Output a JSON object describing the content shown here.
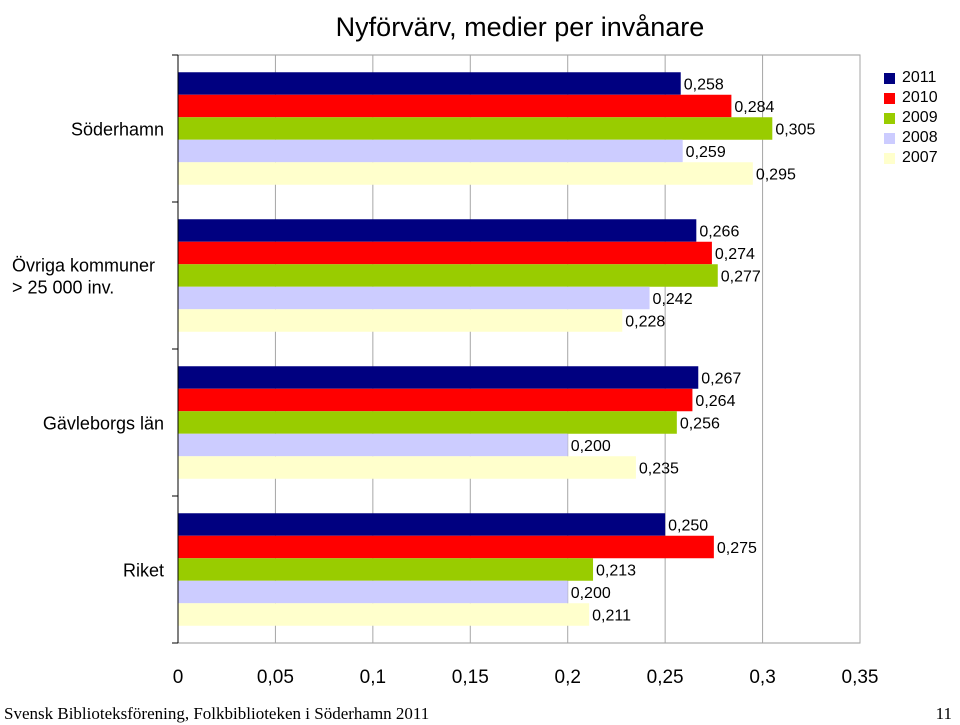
{
  "chart_data": {
    "type": "bar",
    "orientation": "horizontal",
    "title": "Nyförvärv, medier per invånare",
    "categories": [
      "Söderhamn",
      "Övriga kommuner > 25 000 inv.",
      "Gävleborgs län",
      "Riket"
    ],
    "category_lines": [
      [
        "Söderhamn"
      ],
      [
        "Övriga kommuner",
        "> 25 000 inv."
      ],
      [
        "Gävleborgs län"
      ],
      [
        "Riket"
      ]
    ],
    "series": [
      {
        "name": "2011",
        "color": "#000080",
        "values": [
          0.258,
          0.266,
          0.267,
          0.25
        ],
        "labels": [
          "0,258",
          "0,266",
          "0,267",
          "0,250"
        ]
      },
      {
        "name": "2010",
        "color": "#ff0000",
        "values": [
          0.284,
          0.274,
          0.264,
          0.275
        ],
        "labels": [
          "0,284",
          "0,274",
          "0,264",
          "0,275"
        ]
      },
      {
        "name": "2009",
        "color": "#99cc00",
        "values": [
          0.305,
          0.277,
          0.256,
          0.213
        ],
        "labels": [
          "0,305",
          "0,277",
          "0,256",
          "0,213"
        ]
      },
      {
        "name": "2008",
        "color": "#ccccff",
        "values": [
          0.259,
          0.242,
          0.2,
          0.2
        ],
        "labels": [
          "0,259",
          "0,242",
          "0,200",
          "0,200"
        ]
      },
      {
        "name": "2007",
        "color": "#ffffcc",
        "values": [
          0.295,
          0.228,
          0.235,
          0.211
        ],
        "labels": [
          "0,295",
          "0,228",
          "0,235",
          "0,211"
        ]
      }
    ],
    "xlim": [
      0,
      0.35
    ],
    "xticks": [
      0,
      0.05,
      0.1,
      0.15,
      0.2,
      0.25,
      0.3,
      0.35
    ],
    "xtick_labels": [
      "0",
      "0,05",
      "0,1",
      "0,15",
      "0,2",
      "0,25",
      "0,3",
      "0,35"
    ],
    "gridlines": "vertical",
    "legend": "right"
  },
  "footer": {
    "left": "Svensk Biblioteksförening, Folkbiblioteken i Söderhamn 2011",
    "page_number": "11"
  }
}
